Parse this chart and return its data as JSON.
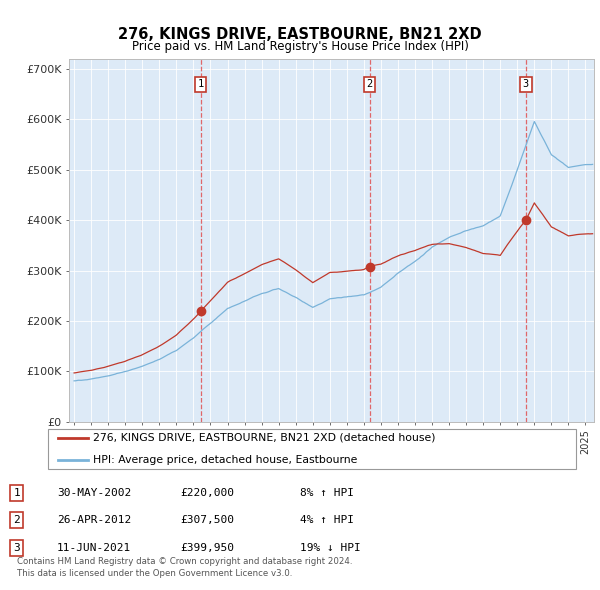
{
  "title": "276, KINGS DRIVE, EASTBOURNE, BN21 2XD",
  "subtitle": "Price paid vs. HM Land Registry's House Price Index (HPI)",
  "hpi_color": "#7ab3d9",
  "price_color": "#c0392b",
  "dashed_line_color": "#e05050",
  "marker_color": "#c0392b",
  "plot_bg_color": "#ddeaf7",
  "sale_prices": [
    220000,
    307500,
    399950
  ],
  "sale_labels": [
    "1",
    "2",
    "3"
  ],
  "legend_entries": [
    "276, KINGS DRIVE, EASTBOURNE, BN21 2XD (detached house)",
    "HPI: Average price, detached house, Eastbourne"
  ],
  "table_rows": [
    [
      "1",
      "30-MAY-2002",
      "£220,000",
      "8% ↑ HPI"
    ],
    [
      "2",
      "26-APR-2012",
      "£307,500",
      "4% ↑ HPI"
    ],
    [
      "3",
      "11-JUN-2021",
      "£399,950",
      "19% ↓ HPI"
    ]
  ],
  "footer": "Contains HM Land Registry data © Crown copyright and database right 2024.\nThis data is licensed under the Open Government Licence v3.0.",
  "ylim": [
    0,
    720000
  ],
  "yticks": [
    0,
    100000,
    200000,
    300000,
    400000,
    500000,
    600000,
    700000
  ],
  "ytick_labels": [
    "£0",
    "£100K",
    "£200K",
    "£300K",
    "£400K",
    "£500K",
    "£600K",
    "£700K"
  ],
  "xlim_start": 1994.7,
  "xlim_end": 2025.5
}
